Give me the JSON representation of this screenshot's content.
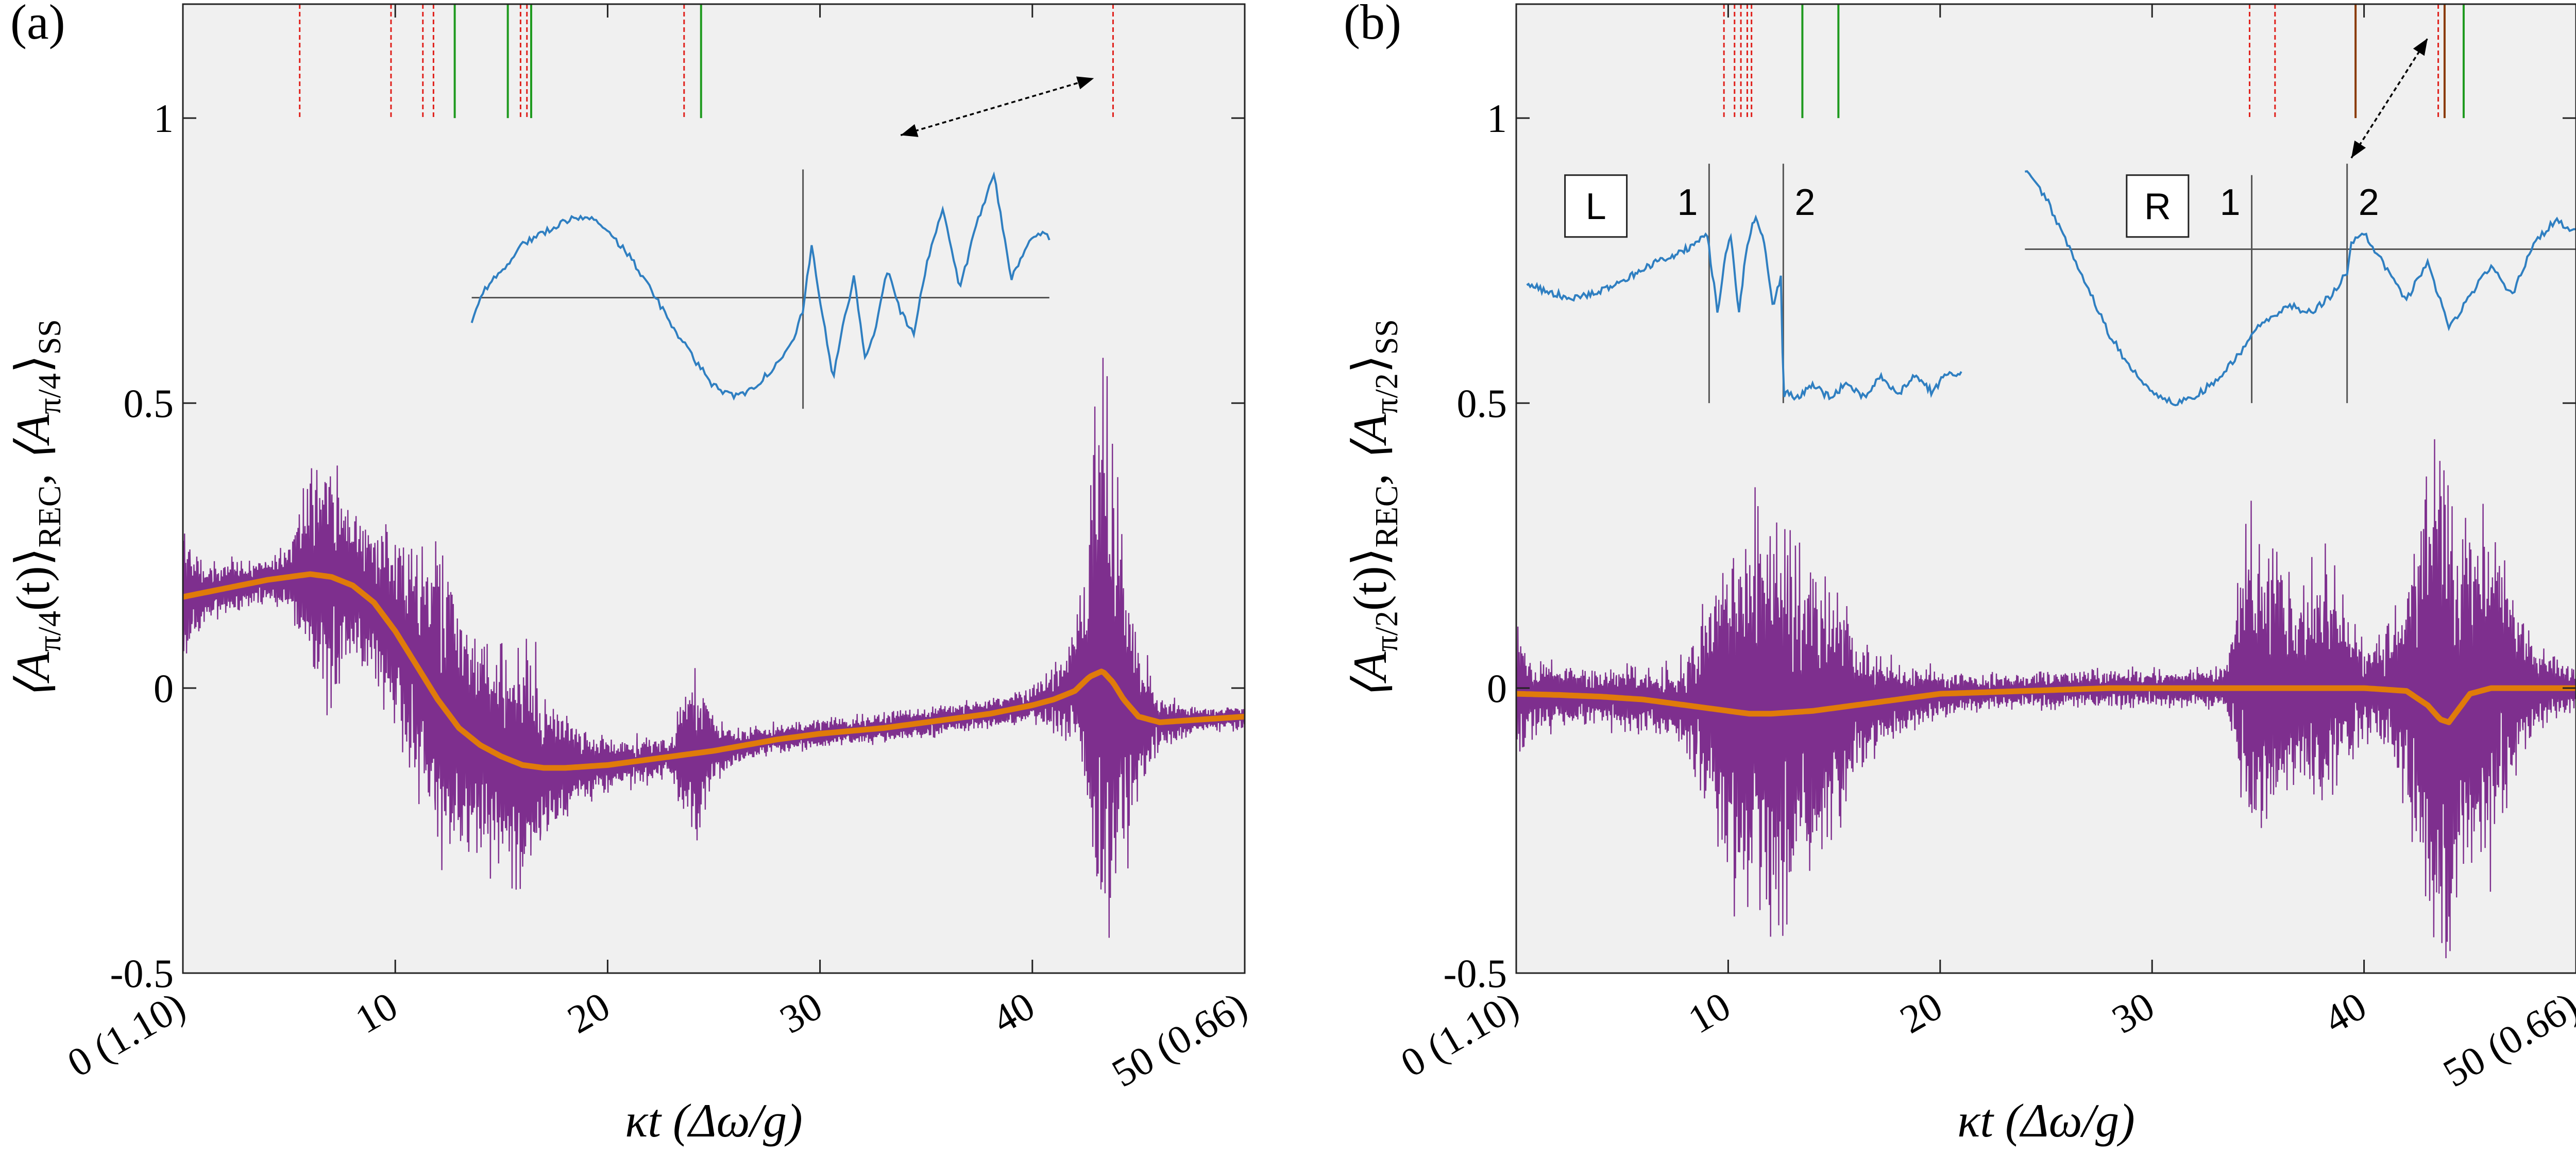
{
  "colors": {
    "background": "#f0f0f0",
    "signal": "#7e2f8e",
    "smoothed": "#e07b0a",
    "inset": "#2f7fc1",
    "red_marker": "#e0201b",
    "green_marker": "#1f9a1f",
    "dark_marker": "#8a3a00"
  },
  "chart_data": [
    {
      "type": "line",
      "panel_label": "(a)",
      "ylabel_main": "⟨A",
      "ylabel_sub1": "π/4",
      "ylabel_mid": "(t)⟩",
      "ylabel_sub2": "REC",
      "ylabel_comma": ",  ⟨A",
      "ylabel_sub3": "π/4",
      "ylabel_end": "⟩",
      "ylabel_sub4": "SS",
      "xlabel": "κt (Δω/g)",
      "xlim": [
        0,
        50
      ],
      "ylim": [
        -0.5,
        1.2
      ],
      "xticks": [
        {
          "v": 0,
          "label": "0 (1.10)"
        },
        {
          "v": 10,
          "label": "10"
        },
        {
          "v": 20,
          "label": "20"
        },
        {
          "v": 30,
          "label": "30"
        },
        {
          "v": 40,
          "label": "40"
        },
        {
          "v": 50,
          "label": "50 (0.66)"
        }
      ],
      "yticks": [
        {
          "v": -0.5,
          "label": "-0.5"
        },
        {
          "v": 0,
          "label": "0"
        },
        {
          "v": 0.5,
          "label": "0.5"
        },
        {
          "v": 1,
          "label": "1"
        }
      ],
      "red_markers": [
        5.5,
        9.8,
        11.3,
        11.8,
        15.9,
        16.2,
        23.6,
        43.8
      ],
      "green_markers": [
        12.8,
        15.3,
        16.4,
        24.4
      ],
      "dark_markers": [],
      "smooth_curve": {
        "x": [
          0,
          2,
          4,
          6,
          7,
          8,
          9,
          10,
          11,
          12,
          13,
          14,
          15,
          16,
          17,
          18,
          20,
          22,
          25,
          28,
          30,
          33,
          36,
          38,
          40,
          41,
          42,
          42.7,
          43.3,
          43.8,
          44.3,
          45,
          46,
          48,
          50
        ],
        "y": [
          0.16,
          0.175,
          0.19,
          0.2,
          0.195,
          0.18,
          0.15,
          0.1,
          0.04,
          -0.02,
          -0.07,
          -0.1,
          -0.12,
          -0.135,
          -0.14,
          -0.14,
          -0.135,
          -0.125,
          -0.11,
          -0.09,
          -0.08,
          -0.07,
          -0.055,
          -0.045,
          -0.03,
          -0.02,
          -0.005,
          0.02,
          0.03,
          0.01,
          -0.02,
          -0.05,
          -0.06,
          -0.055,
          -0.05
        ]
      },
      "signal_envelope": {
        "x": [
          0,
          1,
          3,
          5,
          6,
          7,
          8,
          9,
          10,
          11,
          12,
          13,
          14,
          15,
          16,
          17,
          18,
          19,
          20,
          21,
          22,
          23,
          24,
          25,
          26,
          28,
          30,
          32,
          34,
          36,
          38,
          40,
          41,
          42,
          42.5,
          43,
          43.5,
          44,
          44.5,
          45,
          46,
          47,
          48,
          49,
          50
        ],
        "amp": [
          0.12,
          0.05,
          0.04,
          0.05,
          0.18,
          0.2,
          0.12,
          0.14,
          0.17,
          0.22,
          0.28,
          0.25,
          0.2,
          0.18,
          0.22,
          0.14,
          0.09,
          0.06,
          0.05,
          0.04,
          0.04,
          0.03,
          0.18,
          0.06,
          0.03,
          0.025,
          0.025,
          0.025,
          0.025,
          0.025,
          0.025,
          0.03,
          0.05,
          0.1,
          0.22,
          0.45,
          0.5,
          0.35,
          0.25,
          0.12,
          0.05,
          0.03,
          0.02,
          0.02,
          0.02
        ]
      },
      "insets": [
        {
          "label": "",
          "axis_y": 0.685,
          "axis_x1": 13.6,
          "axis_x2": 40.8,
          "vlines": [
            {
              "x": 29.2,
              "label": "",
              "y1": 0.49,
              "y2": 0.91
            }
          ],
          "x": [
            13.6,
            14.2,
            15,
            16,
            17,
            18,
            19,
            20,
            21,
            22,
            23,
            24,
            25,
            26,
            27,
            28,
            28.8,
            29.2,
            29.6,
            30.1,
            30.6,
            31.1,
            31.6,
            32.1,
            32.6,
            33.2,
            33.8,
            34.4,
            35,
            35.8,
            36.6,
            37.4,
            38.2,
            39,
            39.8,
            40.5,
            40.8
          ],
          "y": [
            0.64,
            0.7,
            0.73,
            0.78,
            0.8,
            0.82,
            0.83,
            0.8,
            0.76,
            0.7,
            0.64,
            0.58,
            0.53,
            0.51,
            0.53,
            0.57,
            0.62,
            0.66,
            0.78,
            0.66,
            0.54,
            0.64,
            0.72,
            0.58,
            0.63,
            0.74,
            0.66,
            0.62,
            0.74,
            0.84,
            0.7,
            0.82,
            0.9,
            0.72,
            0.78,
            0.8,
            0.79
          ]
        }
      ],
      "arrow": {
        "x1": 33.8,
        "y1": 0.97,
        "x2": 42.9,
        "y2": 1.07
      },
      "boxes": []
    },
    {
      "type": "line",
      "panel_label": "(b)",
      "ylabel_main": "⟨A",
      "ylabel_sub1": "π/2",
      "ylabel_mid": "(t)⟩",
      "ylabel_sub2": "REC",
      "ylabel_comma": ",  ⟨A",
      "ylabel_sub3": "π/2",
      "ylabel_end": "⟩",
      "ylabel_sub4": "SS",
      "xlabel": "κt (Δω/g)",
      "xlim": [
        0,
        50
      ],
      "ylim": [
        -0.5,
        1.2
      ],
      "xticks": [
        {
          "v": 0,
          "label": "0 (1.10)"
        },
        {
          "v": 10,
          "label": "10"
        },
        {
          "v": 20,
          "label": "20"
        },
        {
          "v": 30,
          "label": "30"
        },
        {
          "v": 40,
          "label": "40"
        },
        {
          "v": 50,
          "label": "50 (0.66)"
        }
      ],
      "yticks": [
        {
          "v": -0.5,
          "label": "-0.5"
        },
        {
          "v": 0,
          "label": "0"
        },
        {
          "v": 0.5,
          "label": "0.5"
        },
        {
          "v": 1,
          "label": "1"
        }
      ],
      "red_markers": [
        9.8,
        10.3,
        10.6,
        10.9,
        11.1,
        34.6,
        35.8,
        43.5
      ],
      "green_markers": [
        13.5,
        15.2,
        44.7
      ],
      "dark_markers": [
        39.6,
        43.8
      ],
      "smooth_curve": {
        "x": [
          0,
          2,
          4,
          6,
          8,
          10,
          11,
          12,
          14,
          16,
          18,
          20,
          24,
          28,
          32,
          36,
          40,
          42,
          43,
          43.6,
          44,
          44.4,
          45,
          46,
          48,
          50
        ],
        "y": [
          -0.01,
          -0.012,
          -0.015,
          -0.02,
          -0.03,
          -0.04,
          -0.045,
          -0.045,
          -0.04,
          -0.03,
          -0.02,
          -0.01,
          -0.005,
          0,
          0,
          0,
          0,
          -0.005,
          -0.03,
          -0.055,
          -0.06,
          -0.04,
          -0.01,
          0,
          0,
          0
        ]
      },
      "signal_envelope": {
        "x": [
          0,
          1,
          3,
          5,
          7,
          8,
          9,
          10,
          11,
          12,
          13,
          14,
          15,
          16,
          18,
          20,
          22,
          25,
          28,
          30,
          32,
          33.5,
          34,
          34.5,
          35,
          36,
          37,
          38,
          39,
          40,
          41,
          42,
          42.5,
          43,
          43.5,
          44,
          44.5,
          45,
          46,
          47,
          48,
          49,
          50
        ],
        "amp": [
          0.12,
          0.06,
          0.05,
          0.05,
          0.06,
          0.08,
          0.18,
          0.3,
          0.34,
          0.36,
          0.33,
          0.28,
          0.22,
          0.12,
          0.06,
          0.04,
          0.03,
          0.03,
          0.03,
          0.03,
          0.03,
          0.04,
          0.16,
          0.3,
          0.26,
          0.2,
          0.18,
          0.22,
          0.16,
          0.08,
          0.1,
          0.22,
          0.3,
          0.38,
          0.45,
          0.5,
          0.3,
          0.32,
          0.3,
          0.18,
          0.08,
          0.05,
          0.04
        ]
      },
      "insets": [
        {
          "label": "L",
          "axis_y": null,
          "vlines": [
            {
              "x": 9.1,
              "label": "1",
              "y1": 0.5,
              "y2": 0.92
            },
            {
              "x": 12.6,
              "label": "2",
              "y1": 0.5,
              "y2": 0.92
            }
          ],
          "x": [
            0.5,
            1.5,
            2.5,
            3.5,
            4.5,
            5.5,
            6.5,
            7.5,
            8.5,
            9.0,
            9.2,
            9.5,
            9.8,
            10.1,
            10.5,
            10.9,
            11.3,
            11.7,
            12.1,
            12.5,
            12.6,
            12.7,
            13.2,
            14,
            14.8,
            15.6,
            16.4,
            17.2,
            18,
            18.8,
            19.6,
            20.4,
            21
          ],
          "y": [
            0.71,
            0.695,
            0.685,
            0.69,
            0.705,
            0.725,
            0.745,
            0.76,
            0.78,
            0.8,
            0.74,
            0.66,
            0.74,
            0.8,
            0.66,
            0.78,
            0.83,
            0.78,
            0.67,
            0.72,
            0.51,
            0.52,
            0.51,
            0.53,
            0.51,
            0.535,
            0.51,
            0.545,
            0.515,
            0.55,
            0.52,
            0.555,
            0.55
          ]
        },
        {
          "label": "R",
          "axis_y": 0.77,
          "axis_x1": 24,
          "axis_x2": 50,
          "vlines": [
            {
              "x": 34.7,
              "label": "1",
              "y1": 0.5,
              "y2": 0.9
            },
            {
              "x": 39.2,
              "label": "2",
              "y1": 0.5,
              "y2": 0.92
            }
          ],
          "x": [
            24,
            25,
            26,
            27,
            28,
            29,
            30,
            31,
            32,
            33,
            34,
            34.7,
            35.5,
            36.5,
            37.5,
            38.5,
            39.2,
            39.4,
            40,
            41,
            42,
            43,
            44,
            45,
            46,
            47,
            48,
            49,
            50
          ],
          "y": [
            0.91,
            0.86,
            0.78,
            0.7,
            0.62,
            0.56,
            0.52,
            0.5,
            0.51,
            0.54,
            0.58,
            0.62,
            0.65,
            0.67,
            0.66,
            0.69,
            0.73,
            0.78,
            0.8,
            0.74,
            0.68,
            0.75,
            0.63,
            0.69,
            0.74,
            0.69,
            0.78,
            0.82,
            0.8
          ]
        }
      ],
      "arrow": {
        "x1": 39.4,
        "y1": 0.93,
        "x2": 43.0,
        "y2": 1.14
      },
      "boxes": [
        {
          "label": "L",
          "x": 2.3,
          "y": 0.9
        },
        {
          "label": "R",
          "x": 28.8,
          "y": 0.9
        }
      ]
    }
  ]
}
